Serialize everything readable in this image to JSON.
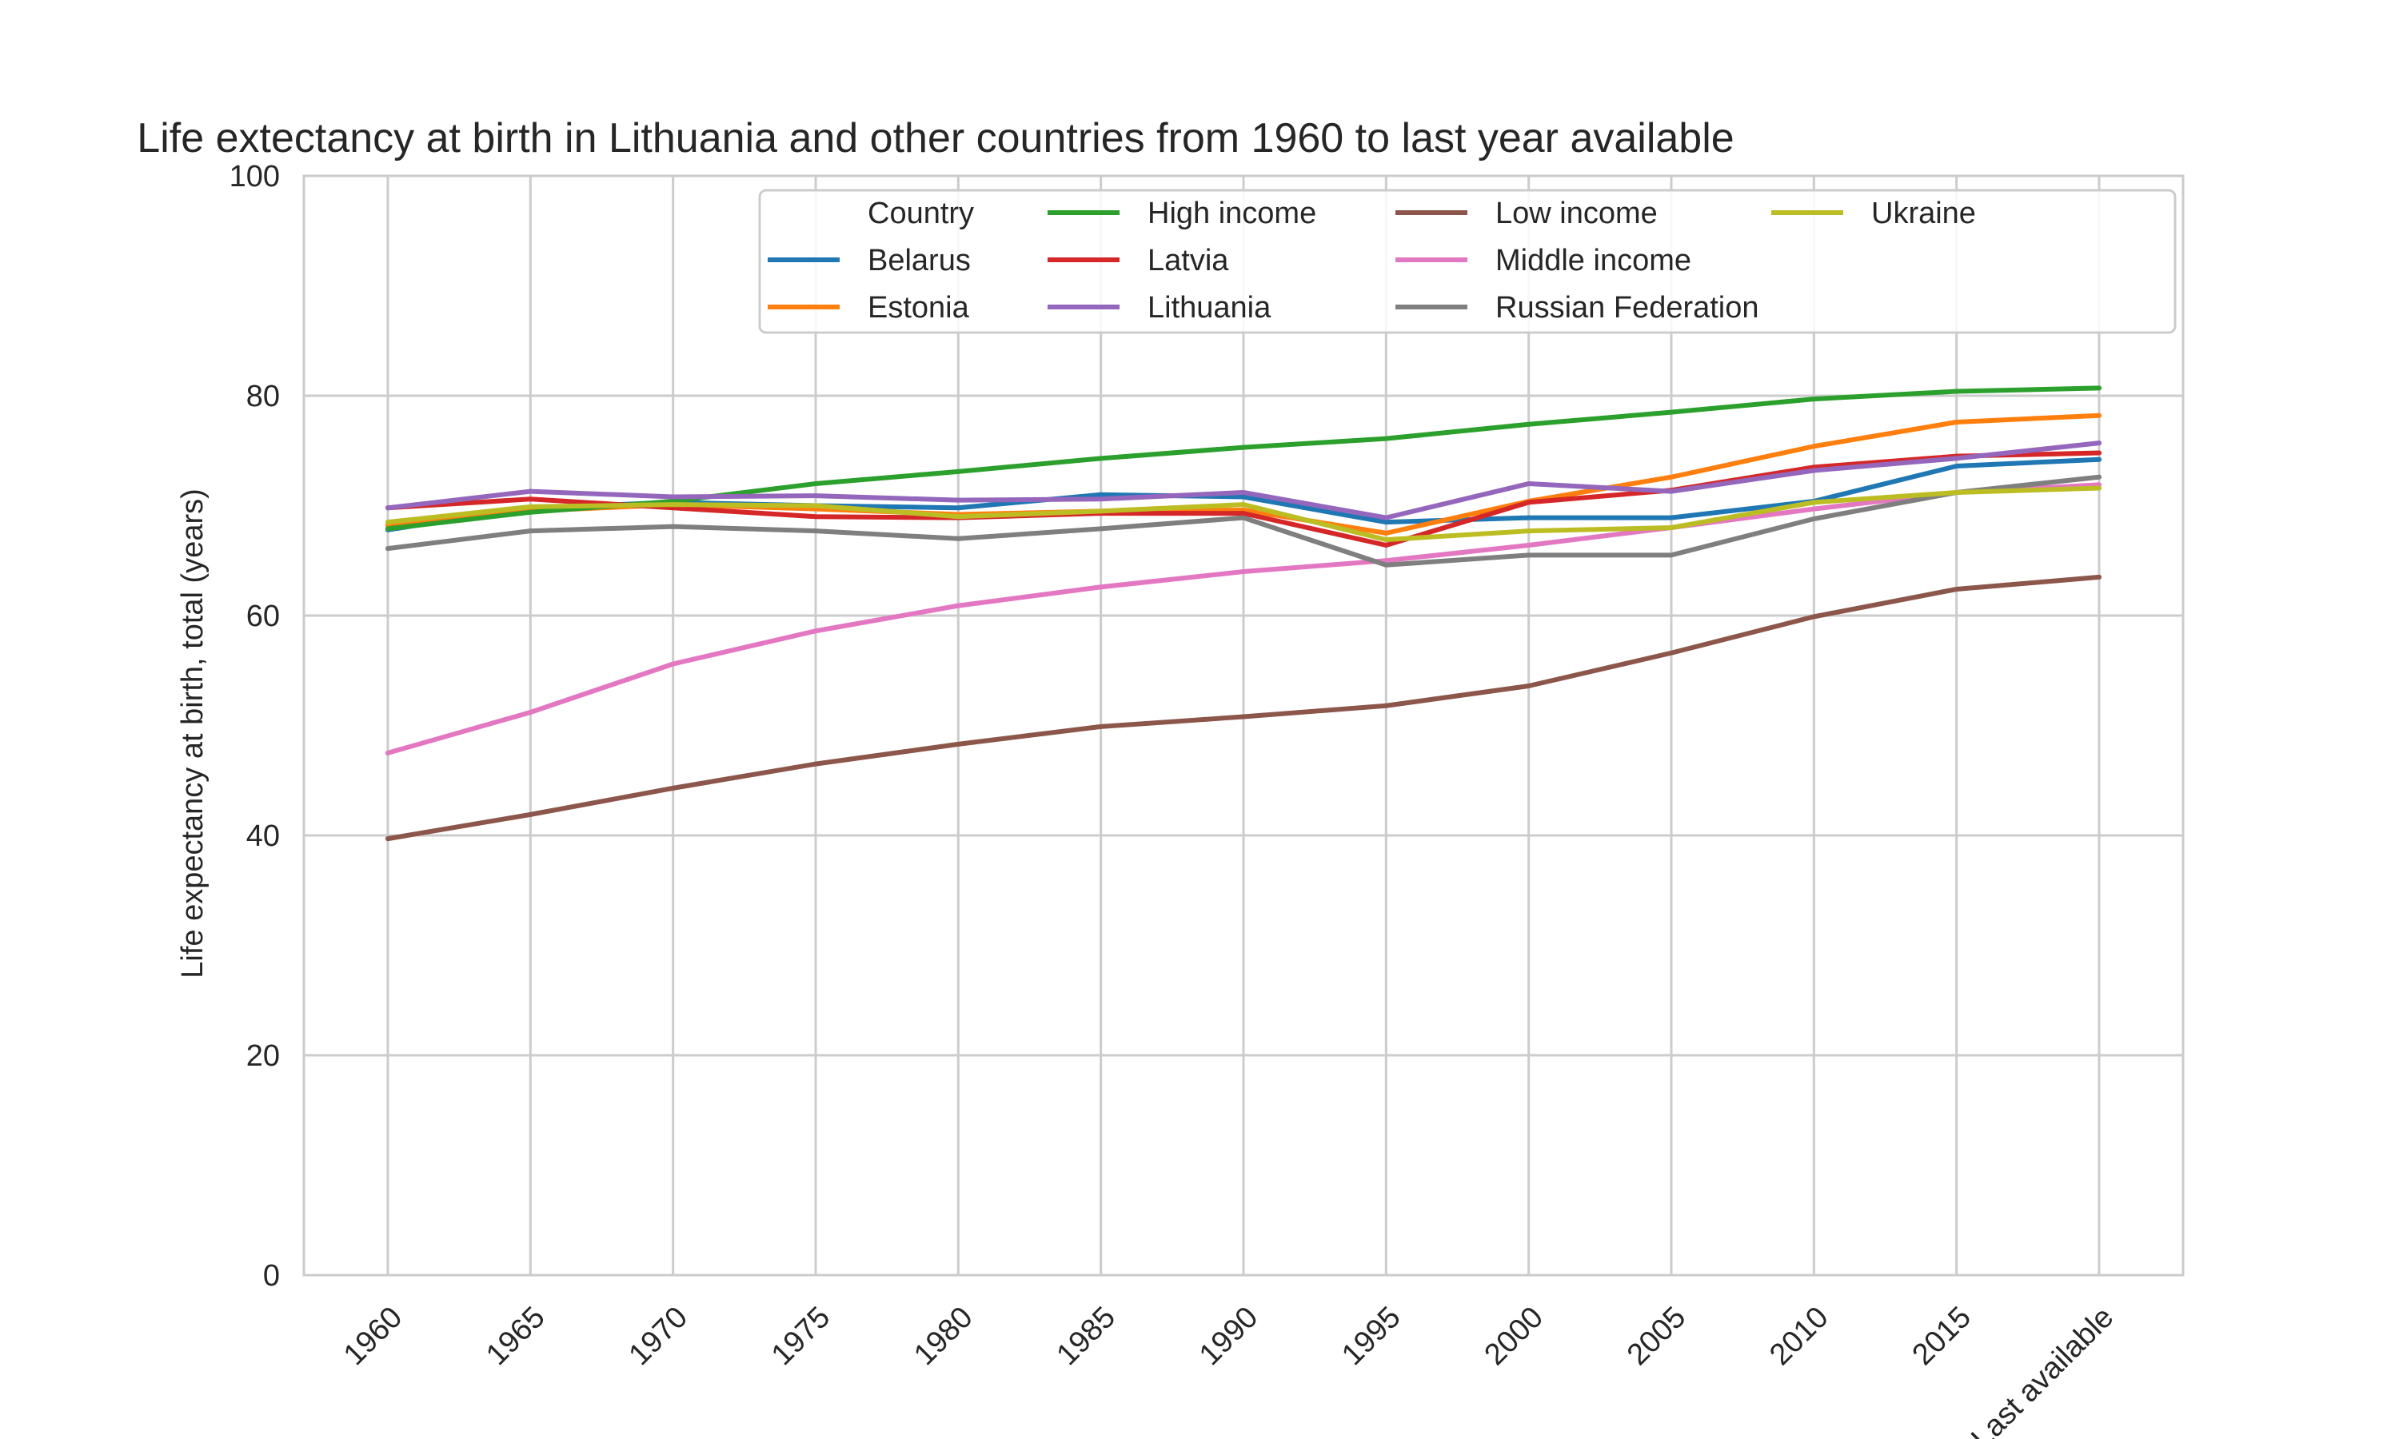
{
  "chart_data": {
    "type": "line",
    "title": "Life extectancy at birth in Lithuania and other countries from 1960 to last year available",
    "xlabel": "",
    "ylabel": "Life expectancy at birth, total (years)",
    "ylim": [
      0,
      100
    ],
    "yticks": [
      "0",
      "20",
      "40",
      "60",
      "80",
      "100"
    ],
    "categories": [
      "1960",
      "1965",
      "1970",
      "1975",
      "1980",
      "1985",
      "1990",
      "1995",
      "2000",
      "2005",
      "2010",
      "2015",
      "Last available"
    ],
    "grid": true,
    "legend": {
      "title": "Country",
      "placement": "top-right",
      "columns": 4
    },
    "series": [
      {
        "name": "Belarus",
        "color": "#1f77b4",
        "values": [
          67.8,
          69.8,
          70.3,
          70.0,
          69.8,
          71.0,
          70.8,
          68.5,
          68.9,
          68.9,
          70.4,
          73.6,
          74.2
        ]
      },
      {
        "name": "Estonia",
        "color": "#ff7f0e",
        "values": [
          68.2,
          69.5,
          70.1,
          69.7,
          69.2,
          69.5,
          69.6,
          67.5,
          70.4,
          72.6,
          75.4,
          77.6,
          78.2
        ]
      },
      {
        "name": "High income",
        "color": "#2ca02c",
        "values": [
          67.9,
          69.4,
          70.4,
          72.0,
          73.1,
          74.3,
          75.3,
          76.1,
          77.4,
          78.5,
          79.7,
          80.4,
          80.7
        ]
      },
      {
        "name": "Latvia",
        "color": "#d62728",
        "values": [
          69.8,
          70.6,
          69.8,
          69.0,
          68.9,
          69.3,
          69.3,
          66.4,
          70.3,
          71.4,
          73.5,
          74.5,
          74.8
        ]
      },
      {
        "name": "Lithuania",
        "color": "#9467bd",
        "values": [
          69.8,
          71.3,
          70.8,
          70.9,
          70.5,
          70.6,
          71.2,
          68.9,
          72.0,
          71.3,
          73.2,
          74.3,
          75.7
        ]
      },
      {
        "name": "Low income",
        "color": "#8c564b",
        "values": [
          39.7,
          41.9,
          44.3,
          46.5,
          48.3,
          49.9,
          50.8,
          51.8,
          53.6,
          56.6,
          59.9,
          62.4,
          63.5
        ]
      },
      {
        "name": "Middle income",
        "color": "#e377c2",
        "values": [
          47.5,
          51.2,
          55.6,
          58.6,
          60.9,
          62.6,
          64.0,
          65.0,
          66.4,
          68.0,
          69.7,
          71.2,
          71.9
        ]
      },
      {
        "name": "Russian Federation",
        "color": "#7f7f7f",
        "values": [
          66.1,
          67.7,
          68.1,
          67.7,
          67.0,
          67.9,
          68.9,
          64.6,
          65.5,
          65.5,
          68.8,
          71.2,
          72.6
        ]
      },
      {
        "name": "Ukraine",
        "color": "#bcbd22",
        "values": [
          68.5,
          69.9,
          70.1,
          70.0,
          69.0,
          69.5,
          70.1,
          66.9,
          67.7,
          68.0,
          70.3,
          71.2,
          71.6
        ]
      }
    ]
  }
}
